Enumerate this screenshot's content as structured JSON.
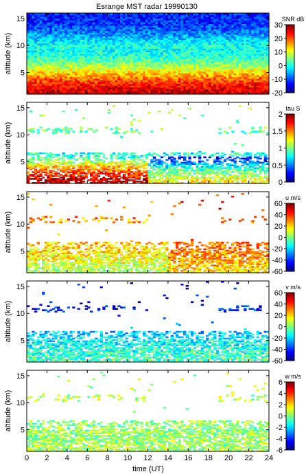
{
  "title": "Esrange MST radar 19990130",
  "xlabel": "time (UT)",
  "chart_data": [
    {
      "type": "heatmap",
      "variable": "SNR",
      "ylabel": "altitude (km)",
      "colorbar_label": "SNR dB",
      "clim": [
        -20,
        30
      ],
      "colorbar_ticks": [
        "30",
        "20",
        "10",
        "0",
        "-10",
        "-20"
      ],
      "xlim": [
        0,
        24
      ],
      "ylim": [
        1,
        16
      ],
      "yticks": [
        "15",
        "10",
        "5"
      ],
      "profile": {
        "altitude_km": [
          1,
          2,
          3,
          4,
          5,
          6,
          7,
          8,
          9,
          10,
          11,
          12,
          13,
          14,
          15
        ],
        "value": [
          27,
          25,
          22,
          18,
          13,
          8,
          4,
          1,
          -1,
          0,
          -3,
          -6,
          -9,
          -11,
          -12
        ]
      }
    },
    {
      "type": "heatmap",
      "variable": "tau",
      "ylabel": "altitude (km)",
      "colorbar_label": "tau S",
      "clim": [
        0,
        2
      ],
      "colorbar_ticks": [
        "2",
        "1.5",
        "1",
        "0.5",
        "0"
      ],
      "xlim": [
        0,
        24
      ],
      "ylim": [
        1,
        16
      ],
      "yticks": [
        "15",
        "10",
        "5"
      ],
      "profile": {
        "altitude_km": [
          1,
          2,
          3,
          4,
          5,
          6,
          10.5,
          11.2
        ],
        "value": [
          1.9,
          1.8,
          1.6,
          1.4,
          1.1,
          0.8,
          0.9,
          1.0
        ]
      }
    },
    {
      "type": "heatmap",
      "variable": "u",
      "ylabel": "altitude (km)",
      "colorbar_label": "u m/s",
      "clim": [
        -60,
        60
      ],
      "colorbar_ticks": [
        "60",
        "40",
        "20",
        "0",
        "-20",
        "-40",
        "-60"
      ],
      "xlim": [
        0,
        24
      ],
      "ylim": [
        1,
        16
      ],
      "yticks": [
        "15",
        "10",
        "5"
      ],
      "profile": {
        "altitude_km": [
          1,
          2,
          3,
          4,
          5,
          6,
          10.5,
          11.2
        ],
        "value": [
          5,
          8,
          12,
          15,
          18,
          20,
          25,
          30
        ]
      }
    },
    {
      "type": "heatmap",
      "variable": "v",
      "ylabel": "altitude (km)",
      "colorbar_label": "v m/s",
      "clim": [
        -60,
        60
      ],
      "colorbar_ticks": [
        "60",
        "40",
        "20",
        "0",
        "-20",
        "-40",
        "-60"
      ],
      "xlim": [
        0,
        24
      ],
      "ylim": [
        1,
        16
      ],
      "yticks": [
        "15",
        "10",
        "5"
      ],
      "profile": {
        "altitude_km": [
          1,
          2,
          3,
          4,
          5,
          6,
          10.5,
          11.2
        ],
        "value": [
          -5,
          -8,
          -10,
          -12,
          -15,
          -20,
          -40,
          -45
        ]
      }
    },
    {
      "type": "heatmap",
      "variable": "w",
      "ylabel": "altitude (km)",
      "colorbar_label": "w m/s",
      "clim": [
        -6,
        6
      ],
      "colorbar_ticks": [
        "6",
        "4",
        "2",
        "0",
        "-2",
        "-4",
        "-6"
      ],
      "xlim": [
        0,
        24
      ],
      "ylim": [
        1,
        16
      ],
      "yticks": [
        "15",
        "10",
        "5"
      ],
      "xticks": [
        "0",
        "2",
        "4",
        "6",
        "8",
        "10",
        "12",
        "14",
        "16",
        "18",
        "20",
        "22",
        "24"
      ],
      "profile": {
        "altitude_km": [
          1,
          2,
          3,
          4,
          5,
          6,
          10.5,
          11.2
        ],
        "value": [
          0.5,
          0.5,
          0.3,
          0.3,
          0.2,
          0.2,
          0.5,
          0.5
        ]
      }
    }
  ]
}
